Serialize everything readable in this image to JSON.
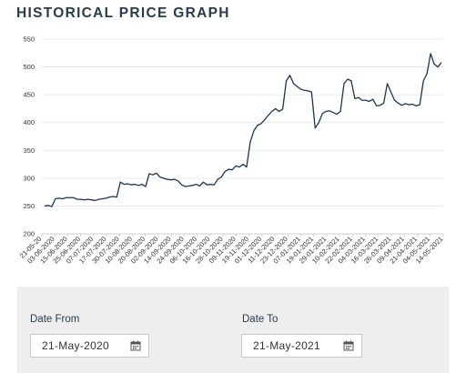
{
  "page": {
    "title": "HISTORICAL PRICE GRAPH"
  },
  "colors": {
    "line": "#1c3557",
    "grid": "#e4e4e4",
    "title": "#2a3b4c",
    "panel": "#eeeeee"
  },
  "chart_data": {
    "type": "line",
    "title": "",
    "xlabel": "",
    "ylabel": "",
    "ylim": [
      200,
      550
    ],
    "yticks": [
      200,
      250,
      300,
      350,
      400,
      450,
      500,
      550
    ],
    "grid": true,
    "xtick_labels": [
      "21-05-20",
      "03-06-2020",
      "15-06-2020",
      "25-06-2020",
      "07-07-2020",
      "17-07-2020",
      "30-07-2020",
      "10-08-2020",
      "20-08-2020",
      "02-09-2020",
      "14-09-2020",
      "24-09-2020",
      "06-10-2020",
      "16-10-2020",
      "28-10-2020",
      "09-11-2020",
      "19-11-2020",
      "01-12-2020",
      "11-12-2020",
      "23-12-2020",
      "07-01-2021",
      "19-01-2021",
      "29-01-2021",
      "10-02-2021",
      "22-02-2021",
      "04-03-2021",
      "16-03-2021",
      "26-03-2021",
      "09-04-2021",
      "21-04-2021",
      "04-05-2021",
      "14-05-2021"
    ],
    "series": [
      {
        "name": "",
        "values": [
          250,
          251,
          249,
          263,
          264,
          263,
          265,
          265,
          265,
          262,
          262,
          261,
          262,
          261,
          260,
          262,
          263,
          264,
          266,
          267,
          266,
          293,
          289,
          290,
          288,
          289,
          287,
          289,
          285,
          308,
          306,
          309,
          302,
          300,
          298,
          297,
          298,
          295,
          288,
          285,
          286,
          287,
          289,
          286,
          293,
          288,
          289,
          288,
          298,
          302,
          312,
          316,
          315,
          322,
          320,
          325,
          320,
          365,
          385,
          395,
          398,
          405,
          413,
          420,
          425,
          420,
          424,
          475,
          485,
          470,
          465,
          460,
          458,
          457,
          455,
          390,
          400,
          416,
          420,
          421,
          418,
          415,
          420,
          470,
          478,
          475,
          443,
          445,
          440,
          440,
          438,
          442,
          430,
          431,
          435,
          470,
          455,
          440,
          435,
          431,
          434,
          432,
          433,
          430,
          432,
          475,
          488,
          524,
          505,
          500,
          508
        ]
      }
    ]
  },
  "filters": {
    "date_from": {
      "label": "Date From",
      "value": "21-May-2020",
      "icon": "calendar-icon"
    },
    "date_to": {
      "label": "Date To",
      "value": "21-May-2021",
      "icon": "calendar-icon"
    }
  }
}
